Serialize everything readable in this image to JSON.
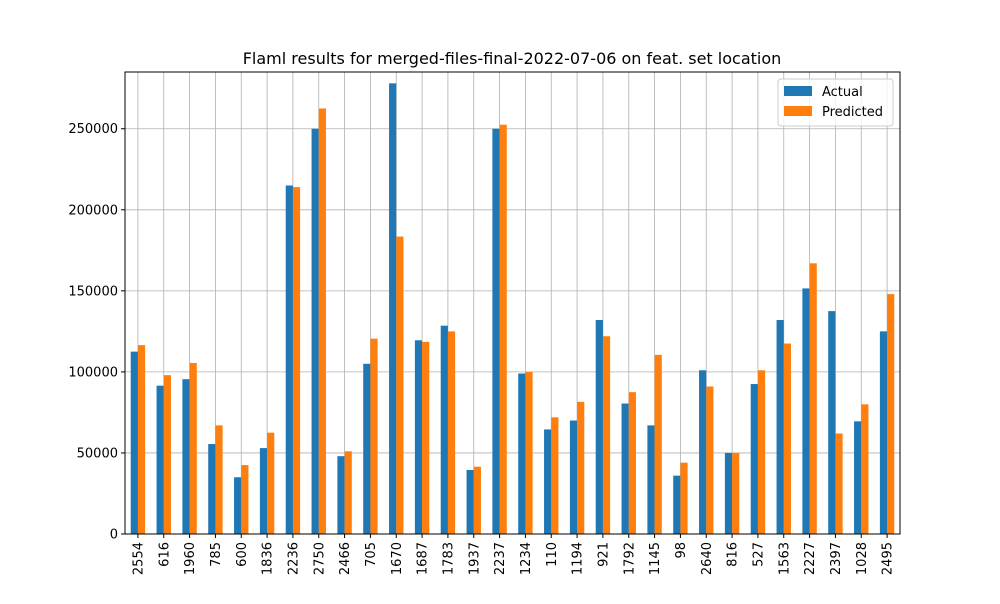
{
  "chart_data": {
    "type": "bar",
    "title": "Flaml results for merged-files-final-2022-07-06 on feat. set location",
    "xlabel": "",
    "ylabel": "",
    "categories": [
      "2554",
      "616",
      "1960",
      "785",
      "600",
      "1836",
      "2236",
      "2750",
      "2466",
      "705",
      "1670",
      "1687",
      "1783",
      "1937",
      "2237",
      "1234",
      "110",
      "1194",
      "921",
      "1792",
      "1145",
      "98",
      "2640",
      "816",
      "527",
      "1563",
      "2227",
      "2397",
      "1028",
      "2495"
    ],
    "series": [
      {
        "name": "Actual",
        "color": "#1f77b4",
        "values": [
          112500,
          91500,
          95500,
          55500,
          35000,
          53000,
          215000,
          250000,
          48000,
          105000,
          278000,
          119500,
          128500,
          39500,
          250000,
          99000,
          64500,
          70000,
          132000,
          80500,
          67000,
          36000,
          101000,
          50000,
          92500,
          132000,
          151500,
          137500,
          69500,
          125000
        ]
      },
      {
        "name": "Predicted",
        "color": "#ff7f0e",
        "values": [
          116500,
          98000,
          105500,
          67000,
          42500,
          62500,
          214000,
          262500,
          51000,
          120500,
          183500,
          118500,
          125000,
          41500,
          252500,
          100000,
          72000,
          81500,
          122000,
          87500,
          110500,
          44000,
          91000,
          50000,
          101000,
          117500,
          167000,
          62000,
          80000,
          148000
        ]
      }
    ],
    "ylim": [
      0,
      285000
    ],
    "yticks": [
      0,
      50000,
      100000,
      150000,
      200000,
      250000
    ],
    "grid": true,
    "legend_position": "top-right"
  }
}
